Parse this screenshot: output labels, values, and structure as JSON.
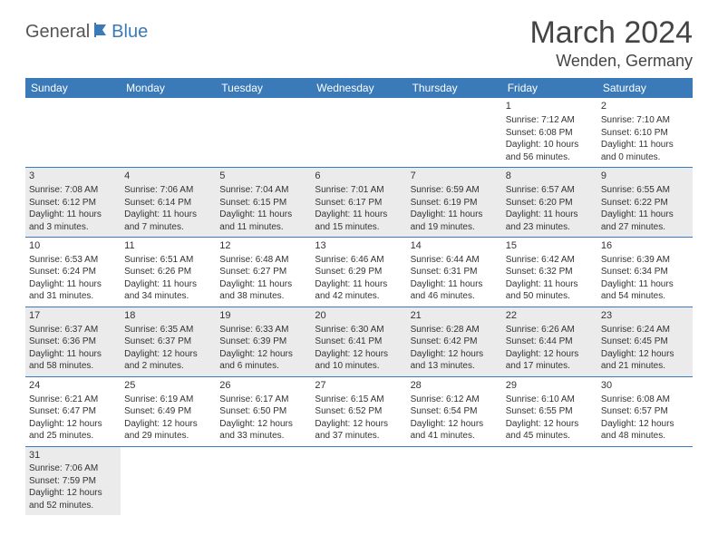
{
  "brand": {
    "part1": "General",
    "part2": "Blue"
  },
  "title": "March 2024",
  "location": "Wenden, Germany",
  "colors": {
    "header_bg": "#3a7ab8",
    "header_text": "#ffffff",
    "shaded_bg": "#ebebeb",
    "border": "#3a7ab8",
    "text": "#333333",
    "title_text": "#444444"
  },
  "typography": {
    "title_fontsize": 34,
    "location_fontsize": 18,
    "dayheader_fontsize": 12,
    "cell_fontsize": 10
  },
  "day_headers": [
    "Sunday",
    "Monday",
    "Tuesday",
    "Wednesday",
    "Thursday",
    "Friday",
    "Saturday"
  ],
  "weeks": [
    {
      "shaded": false,
      "days": [
        null,
        null,
        null,
        null,
        null,
        {
          "n": "1",
          "sunrise": "Sunrise: 7:12 AM",
          "sunset": "Sunset: 6:08 PM",
          "dl1": "Daylight: 10 hours",
          "dl2": "and 56 minutes."
        },
        {
          "n": "2",
          "sunrise": "Sunrise: 7:10 AM",
          "sunset": "Sunset: 6:10 PM",
          "dl1": "Daylight: 11 hours",
          "dl2": "and 0 minutes."
        }
      ]
    },
    {
      "shaded": true,
      "days": [
        {
          "n": "3",
          "sunrise": "Sunrise: 7:08 AM",
          "sunset": "Sunset: 6:12 PM",
          "dl1": "Daylight: 11 hours",
          "dl2": "and 3 minutes."
        },
        {
          "n": "4",
          "sunrise": "Sunrise: 7:06 AM",
          "sunset": "Sunset: 6:14 PM",
          "dl1": "Daylight: 11 hours",
          "dl2": "and 7 minutes."
        },
        {
          "n": "5",
          "sunrise": "Sunrise: 7:04 AM",
          "sunset": "Sunset: 6:15 PM",
          "dl1": "Daylight: 11 hours",
          "dl2": "and 11 minutes."
        },
        {
          "n": "6",
          "sunrise": "Sunrise: 7:01 AM",
          "sunset": "Sunset: 6:17 PM",
          "dl1": "Daylight: 11 hours",
          "dl2": "and 15 minutes."
        },
        {
          "n": "7",
          "sunrise": "Sunrise: 6:59 AM",
          "sunset": "Sunset: 6:19 PM",
          "dl1": "Daylight: 11 hours",
          "dl2": "and 19 minutes."
        },
        {
          "n": "8",
          "sunrise": "Sunrise: 6:57 AM",
          "sunset": "Sunset: 6:20 PM",
          "dl1": "Daylight: 11 hours",
          "dl2": "and 23 minutes."
        },
        {
          "n": "9",
          "sunrise": "Sunrise: 6:55 AM",
          "sunset": "Sunset: 6:22 PM",
          "dl1": "Daylight: 11 hours",
          "dl2": "and 27 minutes."
        }
      ]
    },
    {
      "shaded": false,
      "days": [
        {
          "n": "10",
          "sunrise": "Sunrise: 6:53 AM",
          "sunset": "Sunset: 6:24 PM",
          "dl1": "Daylight: 11 hours",
          "dl2": "and 31 minutes."
        },
        {
          "n": "11",
          "sunrise": "Sunrise: 6:51 AM",
          "sunset": "Sunset: 6:26 PM",
          "dl1": "Daylight: 11 hours",
          "dl2": "and 34 minutes."
        },
        {
          "n": "12",
          "sunrise": "Sunrise: 6:48 AM",
          "sunset": "Sunset: 6:27 PM",
          "dl1": "Daylight: 11 hours",
          "dl2": "and 38 minutes."
        },
        {
          "n": "13",
          "sunrise": "Sunrise: 6:46 AM",
          "sunset": "Sunset: 6:29 PM",
          "dl1": "Daylight: 11 hours",
          "dl2": "and 42 minutes."
        },
        {
          "n": "14",
          "sunrise": "Sunrise: 6:44 AM",
          "sunset": "Sunset: 6:31 PM",
          "dl1": "Daylight: 11 hours",
          "dl2": "and 46 minutes."
        },
        {
          "n": "15",
          "sunrise": "Sunrise: 6:42 AM",
          "sunset": "Sunset: 6:32 PM",
          "dl1": "Daylight: 11 hours",
          "dl2": "and 50 minutes."
        },
        {
          "n": "16",
          "sunrise": "Sunrise: 6:39 AM",
          "sunset": "Sunset: 6:34 PM",
          "dl1": "Daylight: 11 hours",
          "dl2": "and 54 minutes."
        }
      ]
    },
    {
      "shaded": true,
      "days": [
        {
          "n": "17",
          "sunrise": "Sunrise: 6:37 AM",
          "sunset": "Sunset: 6:36 PM",
          "dl1": "Daylight: 11 hours",
          "dl2": "and 58 minutes."
        },
        {
          "n": "18",
          "sunrise": "Sunrise: 6:35 AM",
          "sunset": "Sunset: 6:37 PM",
          "dl1": "Daylight: 12 hours",
          "dl2": "and 2 minutes."
        },
        {
          "n": "19",
          "sunrise": "Sunrise: 6:33 AM",
          "sunset": "Sunset: 6:39 PM",
          "dl1": "Daylight: 12 hours",
          "dl2": "and 6 minutes."
        },
        {
          "n": "20",
          "sunrise": "Sunrise: 6:30 AM",
          "sunset": "Sunset: 6:41 PM",
          "dl1": "Daylight: 12 hours",
          "dl2": "and 10 minutes."
        },
        {
          "n": "21",
          "sunrise": "Sunrise: 6:28 AM",
          "sunset": "Sunset: 6:42 PM",
          "dl1": "Daylight: 12 hours",
          "dl2": "and 13 minutes."
        },
        {
          "n": "22",
          "sunrise": "Sunrise: 6:26 AM",
          "sunset": "Sunset: 6:44 PM",
          "dl1": "Daylight: 12 hours",
          "dl2": "and 17 minutes."
        },
        {
          "n": "23",
          "sunrise": "Sunrise: 6:24 AM",
          "sunset": "Sunset: 6:45 PM",
          "dl1": "Daylight: 12 hours",
          "dl2": "and 21 minutes."
        }
      ]
    },
    {
      "shaded": false,
      "days": [
        {
          "n": "24",
          "sunrise": "Sunrise: 6:21 AM",
          "sunset": "Sunset: 6:47 PM",
          "dl1": "Daylight: 12 hours",
          "dl2": "and 25 minutes."
        },
        {
          "n": "25",
          "sunrise": "Sunrise: 6:19 AM",
          "sunset": "Sunset: 6:49 PM",
          "dl1": "Daylight: 12 hours",
          "dl2": "and 29 minutes."
        },
        {
          "n": "26",
          "sunrise": "Sunrise: 6:17 AM",
          "sunset": "Sunset: 6:50 PM",
          "dl1": "Daylight: 12 hours",
          "dl2": "and 33 minutes."
        },
        {
          "n": "27",
          "sunrise": "Sunrise: 6:15 AM",
          "sunset": "Sunset: 6:52 PM",
          "dl1": "Daylight: 12 hours",
          "dl2": "and 37 minutes."
        },
        {
          "n": "28",
          "sunrise": "Sunrise: 6:12 AM",
          "sunset": "Sunset: 6:54 PM",
          "dl1": "Daylight: 12 hours",
          "dl2": "and 41 minutes."
        },
        {
          "n": "29",
          "sunrise": "Sunrise: 6:10 AM",
          "sunset": "Sunset: 6:55 PM",
          "dl1": "Daylight: 12 hours",
          "dl2": "and 45 minutes."
        },
        {
          "n": "30",
          "sunrise": "Sunrise: 6:08 AM",
          "sunset": "Sunset: 6:57 PM",
          "dl1": "Daylight: 12 hours",
          "dl2": "and 48 minutes."
        }
      ]
    },
    {
      "shaded": true,
      "last": true,
      "days": [
        {
          "n": "31",
          "sunrise": "Sunrise: 7:06 AM",
          "sunset": "Sunset: 7:59 PM",
          "dl1": "Daylight: 12 hours",
          "dl2": "and 52 minutes."
        },
        null,
        null,
        null,
        null,
        null,
        null
      ]
    }
  ]
}
